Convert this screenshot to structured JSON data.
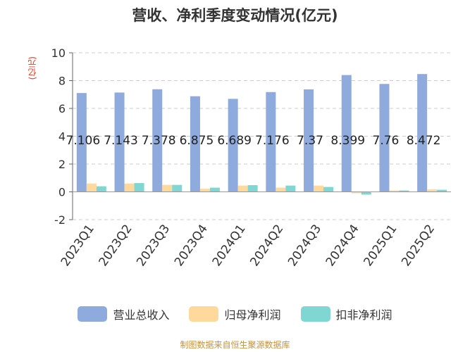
{
  "chart_data": {
    "type": "bar",
    "title": "营收、净利季度变动情况(亿元)",
    "ylabel": "(亿元)",
    "xlabel": "",
    "ylim": [
      -2,
      10
    ],
    "yticks": [
      -2,
      0,
      2,
      4,
      6,
      8,
      10
    ],
    "grid": true,
    "legend_position": "bottom",
    "categories": [
      "2023Q1",
      "2023Q2",
      "2023Q3",
      "2023Q4",
      "2024Q1",
      "2024Q2",
      "2024Q3",
      "2024Q4",
      "2025Q1",
      "2025Q2"
    ],
    "series": [
      {
        "name": "营业总收入",
        "color": "#8faadc",
        "values": [
          7.106,
          7.143,
          7.378,
          6.875,
          6.689,
          7.176,
          7.37,
          8.399,
          7.76,
          8.472
        ],
        "data_labels": [
          "7.106",
          "7.143",
          "7.378",
          "6.875",
          "6.689",
          "7.176",
          "7.37",
          "8.399",
          "7.76",
          "8.472"
        ]
      },
      {
        "name": "归母净利润",
        "color": "#ffd89b",
        "values": [
          0.6,
          0.6,
          0.5,
          0.22,
          0.45,
          0.3,
          0.45,
          -0.1,
          0.1,
          0.18
        ]
      },
      {
        "name": "扣非净利润",
        "color": "#7fd6d3",
        "values": [
          0.4,
          0.63,
          0.5,
          0.3,
          0.48,
          0.45,
          0.35,
          -0.2,
          0.1,
          0.15
        ]
      }
    ]
  },
  "source_text": "制图数据来自恒生聚源数据库"
}
